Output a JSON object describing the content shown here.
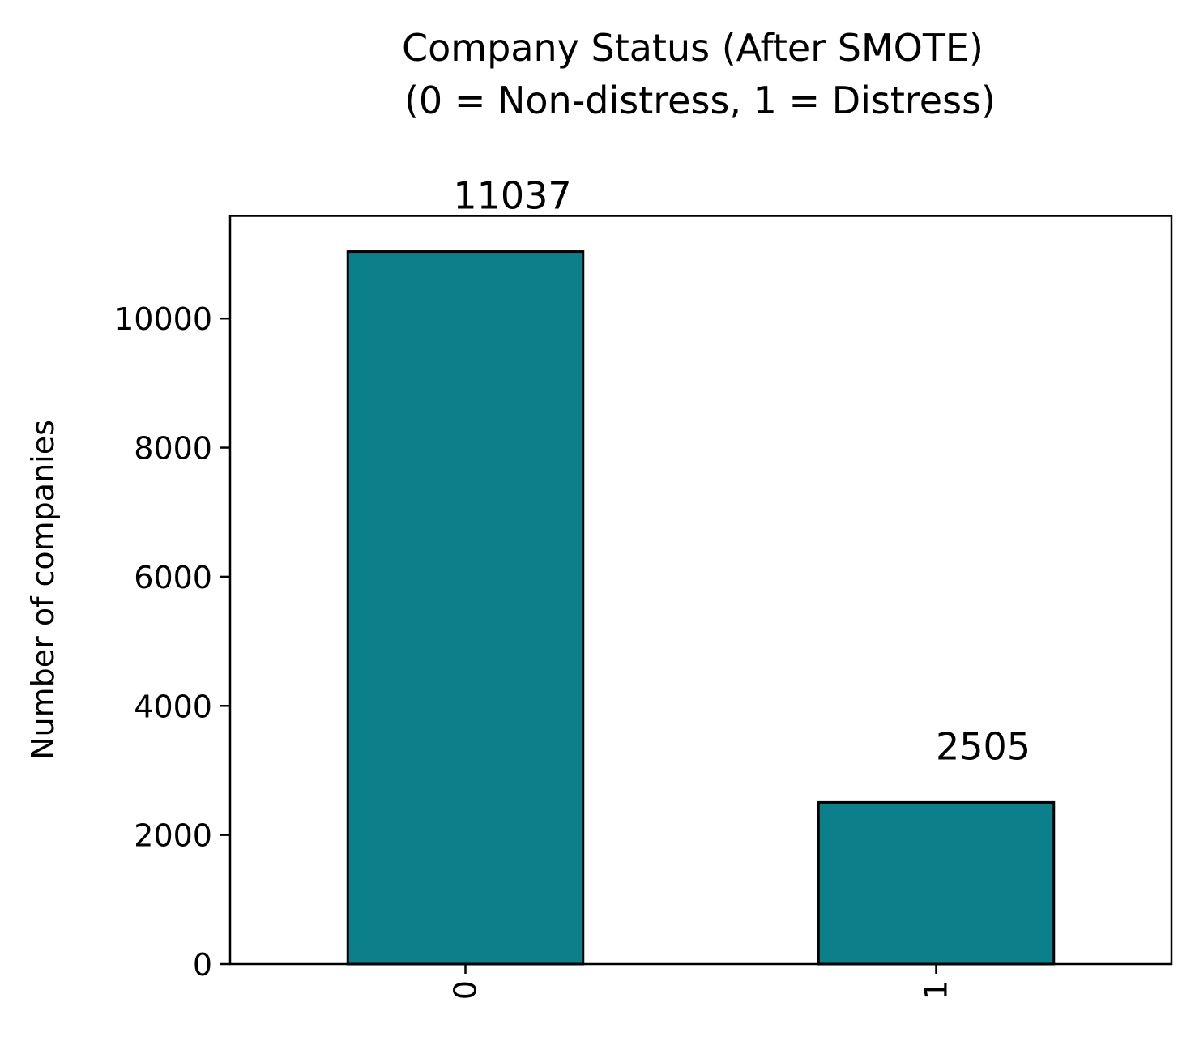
{
  "chart_data": {
    "type": "bar",
    "title_lines": [
      "Company Status (After SMOTE)",
      "(0 = Non-distress, 1 = Distress)"
    ],
    "xlabel": "",
    "ylabel": "Number of companies",
    "categories": [
      "0",
      "1"
    ],
    "values": [
      11037,
      2505
    ],
    "data_labels": [
      "11037",
      "2505"
    ],
    "ylim": [
      0,
      11590
    ],
    "yticks": [
      0,
      2000,
      4000,
      6000,
      8000,
      10000
    ],
    "ytick_labels": [
      "0",
      "2000",
      "4000",
      "6000",
      "8000",
      "10000"
    ],
    "xtick_rotation": "vertical",
    "grid": false,
    "legend": "none",
    "colors": {
      "bar": "#0b7f8a",
      "bar_edge": "#000000",
      "axes": "#000000",
      "background": "#ffffff"
    }
  }
}
